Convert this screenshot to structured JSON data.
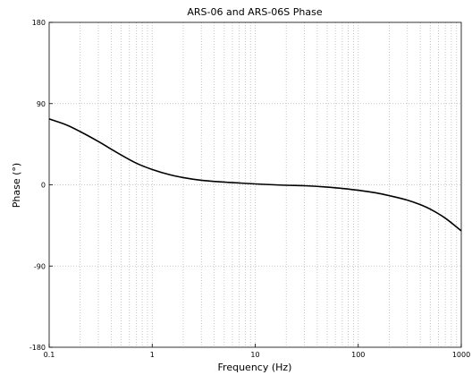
{
  "chart_data": {
    "type": "line",
    "title": "ARS-06 and ARS-06S Phase",
    "xlabel": "Frequency (Hz)",
    "ylabel": "Phase (°)",
    "x_scale": "log",
    "xlim": [
      0.1,
      1000
    ],
    "ylim": [
      -180,
      180
    ],
    "x_ticks": [
      0.1,
      1,
      10,
      100,
      1000
    ],
    "x_tick_labels": [
      "0.1",
      "1",
      "10",
      "100",
      "1000"
    ],
    "y_ticks": [
      180,
      90,
      0,
      -90,
      -180
    ],
    "y_tick_labels": [
      "180",
      "90",
      "0",
      "-90",
      "-180"
    ],
    "grid": true,
    "series": [
      {
        "color": "#000000",
        "x": [
          0.1,
          0.15,
          0.2,
          0.3,
          0.5,
          0.7,
          1,
          1.5,
          2,
          3,
          5,
          7,
          10,
          20,
          30,
          50,
          70,
          100,
          150,
          200,
          300,
          400,
          500,
          700,
          1000
        ],
        "y": [
          73,
          66,
          59,
          48,
          33,
          24,
          17,
          11,
          8,
          5,
          3,
          2,
          1,
          -0.5,
          -1,
          -2.5,
          -4,
          -6,
          -9,
          -12,
          -17,
          -22,
          -27,
          -37,
          -51
        ]
      }
    ]
  }
}
